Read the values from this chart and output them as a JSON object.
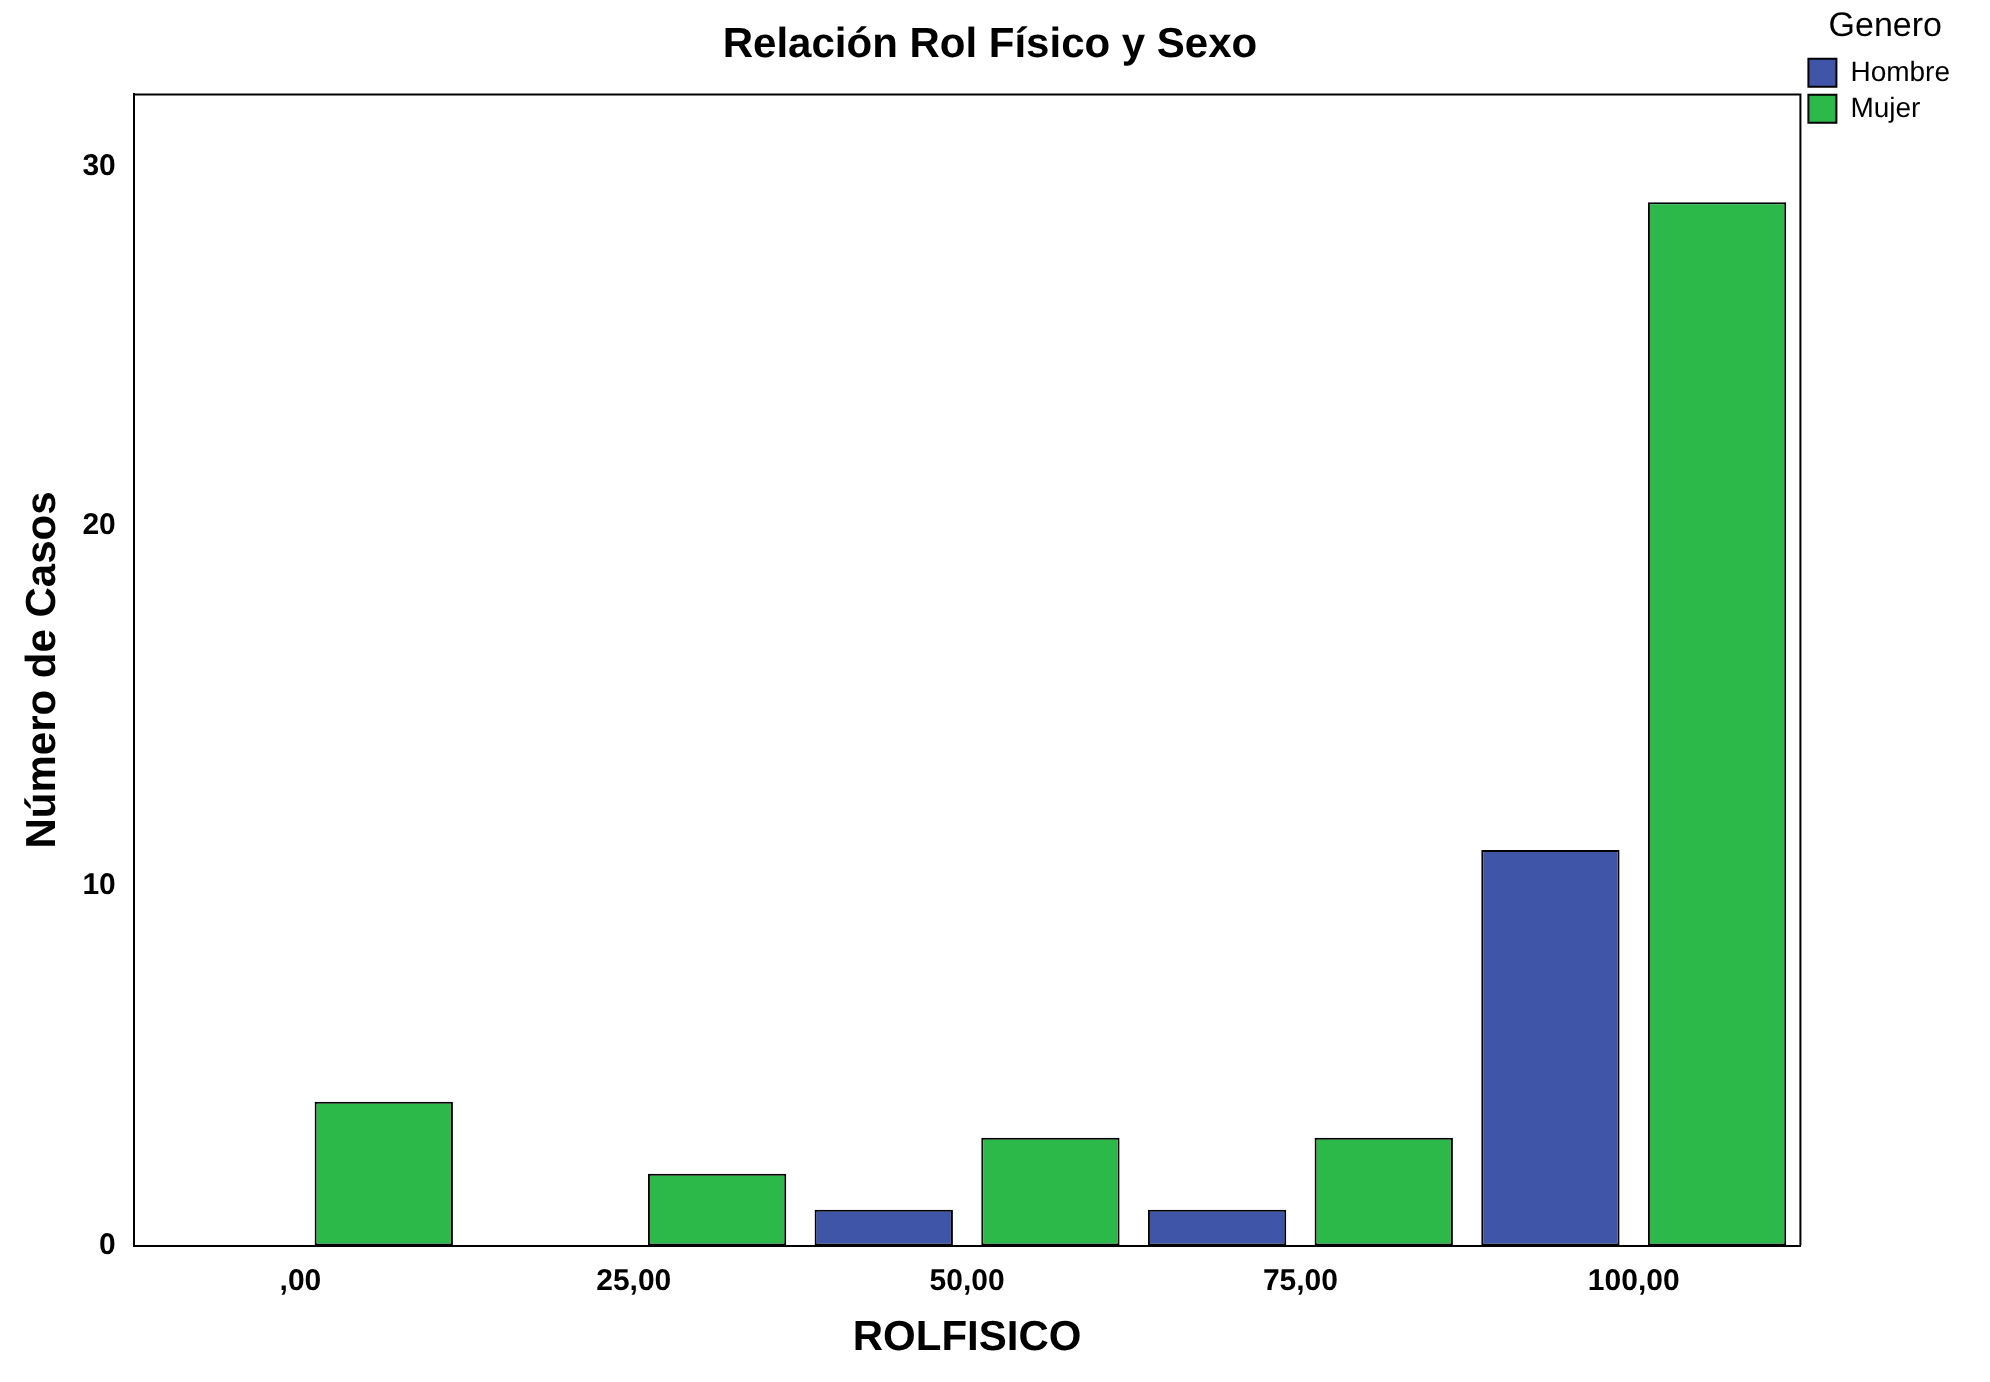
{
  "chart_data": {
    "type": "bar",
    "title": "Relación Rol Físico y Sexo",
    "xlabel": "ROLFISICO",
    "ylabel": "Número de Casos",
    "legend_title": "Genero",
    "legend": "top right",
    "grid": false,
    "categories": [
      ",00",
      "25,00",
      "50,00",
      "75,00",
      "100,00"
    ],
    "series": [
      {
        "name": "Hombre",
        "color": "#3f56a8",
        "values": [
          0,
          0,
          1,
          1,
          11
        ]
      },
      {
        "name": "Mujer",
        "color": "#2db84a",
        "values": [
          4,
          2,
          3,
          3,
          29
        ]
      }
    ],
    "ylim": [
      0,
      32
    ],
    "yticks": [
      0,
      10,
      20,
      30
    ]
  }
}
